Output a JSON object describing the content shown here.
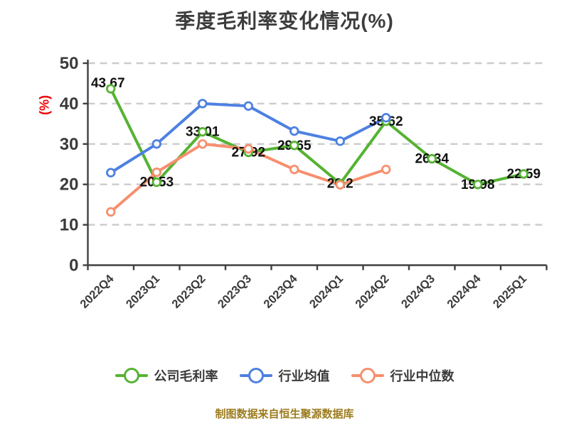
{
  "title": "季度毛利率变化情况(%)",
  "footer": "制图数据来自恒生聚源数据库",
  "chart_data": {
    "type": "line",
    "title": "季度毛利率变化情况(%)",
    "ylabel": "(%)",
    "ylim": [
      0,
      50
    ],
    "ytick_step": 10,
    "yticks": [
      0,
      10,
      20,
      30,
      40,
      50
    ],
    "grid": "horizontal-dashed",
    "legend_position": "bottom",
    "categories": [
      "2022Q4",
      "2023Q1",
      "2023Q2",
      "2023Q3",
      "2023Q4",
      "2024Q1",
      "2024Q2",
      "2024Q3",
      "2024Q4",
      "2025Q1"
    ],
    "series": [
      {
        "name": "公司毛利率",
        "key": "company-gross-margin",
        "color": "#55b332",
        "labeled": true,
        "values": [
          43.67,
          20.53,
          33.01,
          27.92,
          29.65,
          20.2,
          35.62,
          26.34,
          19.98,
          22.59
        ]
      },
      {
        "name": "行业均值",
        "key": "industry-average",
        "color": "#4e80e1",
        "labeled": false,
        "values": [
          22.9,
          30.0,
          40.0,
          39.4,
          33.2,
          30.7,
          36.5
        ]
      },
      {
        "name": "行业中位数",
        "key": "industry-median",
        "color": "#f78f6e",
        "labeled": false,
        "values": [
          13.2,
          23.0,
          30.0,
          28.8,
          23.7,
          19.9,
          23.7
        ]
      }
    ]
  },
  "colors": {
    "title": "#3d3d3d",
    "axis": "#404040",
    "tick_label": "#3a3a3a",
    "gridline": "#cccccc",
    "value_label": "#111111",
    "y_axis_name": "#ec0000",
    "footer": "#9c7c1e",
    "point_fill": "#ffffff"
  }
}
